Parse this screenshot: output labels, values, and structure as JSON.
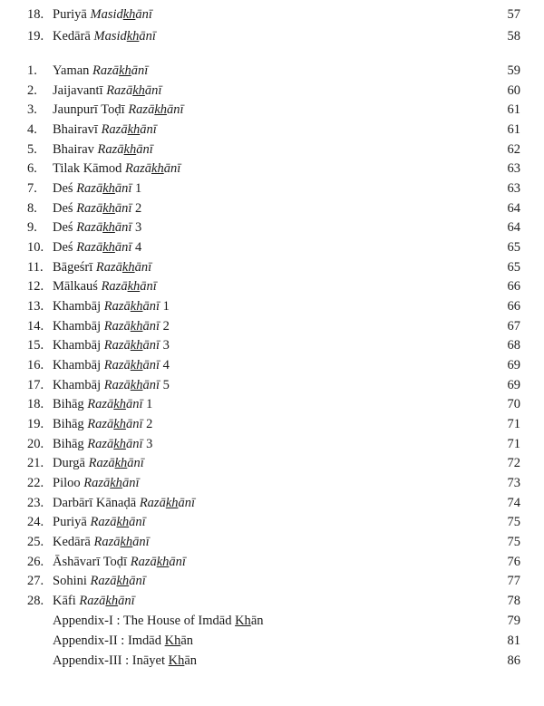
{
  "part1": [
    {
      "num": "18.",
      "raga": "Puriyā ",
      "style": [
        "Masid",
        "kh",
        "ānī"
      ],
      "suffix": "",
      "page": "57"
    },
    {
      "num": "19.",
      "raga": "Kedārā ",
      "style": [
        "Masid",
        "kh",
        "ānī"
      ],
      "suffix": "",
      "page": "58"
    }
  ],
  "part2": [
    {
      "num": "1.",
      "raga": "Yaman ",
      "style": [
        "Razā",
        "kh",
        "ānī"
      ],
      "suffix": "",
      "page": "59"
    },
    {
      "num": "2.",
      "raga": "Jaijavantī ",
      "style": [
        "Razā",
        "kh",
        "ānī"
      ],
      "suffix": "",
      "page": "60"
    },
    {
      "num": "3.",
      "raga": "Jaunpurī Toḍī ",
      "style": [
        "Razā",
        "kh",
        "ānī"
      ],
      "suffix": "",
      "page": "61"
    },
    {
      "num": "4.",
      "raga": "Bhairavī ",
      "style": [
        "Razā",
        "kh",
        "ānī"
      ],
      "suffix": "",
      "page": "61"
    },
    {
      "num": "5.",
      "raga": "Bhairav ",
      "style": [
        "Razā",
        "kh",
        "ānī"
      ],
      "suffix": "",
      "page": "62"
    },
    {
      "num": "6.",
      "raga": "Tilak Kāmod ",
      "style": [
        "Razā",
        "kh",
        "ānī"
      ],
      "suffix": "",
      "page": "63"
    },
    {
      "num": "7.",
      "raga": "Deś ",
      "style": [
        "Razā",
        "kh",
        "ānī"
      ],
      "suffix": " 1",
      "page": "63"
    },
    {
      "num": "8.",
      "raga": "Deś ",
      "style": [
        "Razā",
        "kh",
        "ānī"
      ],
      "suffix": " 2",
      "page": "64"
    },
    {
      "num": "9.",
      "raga": "Deś ",
      "style": [
        "Razā",
        "kh",
        "ānī"
      ],
      "suffix": " 3",
      "page": "64"
    },
    {
      "num": "10.",
      "raga": "Deś ",
      "style": [
        "Razā",
        "kh",
        "ānī"
      ],
      "suffix": " 4",
      "page": "65"
    },
    {
      "num": "11.",
      "raga": "Bāgeśrī ",
      "style": [
        "Razā",
        "kh",
        "ānī"
      ],
      "suffix": "",
      "page": "65"
    },
    {
      "num": "12.",
      "raga": "Mālkauś ",
      "style": [
        "Razā",
        "kh",
        "ānī"
      ],
      "suffix": "",
      "page": "66"
    },
    {
      "num": "13.",
      "raga": "Khambāj ",
      "style": [
        "Razā",
        "kh",
        "ānī"
      ],
      "suffix": " 1",
      "page": "66"
    },
    {
      "num": "14.",
      "raga": "Khambāj ",
      "style": [
        "Razā",
        "kh",
        "ānī"
      ],
      "suffix": " 2",
      "page": "67"
    },
    {
      "num": "15.",
      "raga": "Khambāj ",
      "style": [
        "Razā",
        "kh",
        "ānī"
      ],
      "suffix": " 3",
      "page": "68"
    },
    {
      "num": "16.",
      "raga": "Khambāj ",
      "style": [
        "Razā",
        "kh",
        "ānī"
      ],
      "suffix": " 4",
      "page": "69"
    },
    {
      "num": "17.",
      "raga": "Khambāj ",
      "style": [
        "Razā",
        "kh",
        "ānī"
      ],
      "suffix": " 5",
      "page": "69"
    },
    {
      "num": "18.",
      "raga": "Bihāg ",
      "style": [
        "Razā",
        "kh",
        "ānī"
      ],
      "suffix": " 1",
      "page": "70"
    },
    {
      "num": "19.",
      "raga": "Bihāg ",
      "style": [
        "Razā",
        "kh",
        "ānī"
      ],
      "suffix": " 2",
      "page": "71"
    },
    {
      "num": "20.",
      "raga": "Bihāg ",
      "style": [
        "Razā",
        "kh",
        "ānī"
      ],
      "suffix": " 3",
      "page": "71"
    },
    {
      "num": "21.",
      "raga": "Durgā ",
      "style": [
        "Razā",
        "kh",
        "ānī"
      ],
      "suffix": "",
      "page": "72"
    },
    {
      "num": "22.",
      "raga": "Piloo ",
      "style": [
        "Razā",
        "kh",
        "ānī"
      ],
      "suffix": "",
      "page": "73"
    },
    {
      "num": "23.",
      "raga": "Darbārī Kānaḍā ",
      "style": [
        "Razā",
        "kh",
        "ānī"
      ],
      "suffix": "",
      "page": "74"
    },
    {
      "num": "24.",
      "raga": "Puriyā ",
      "style": [
        "Razā",
        "kh",
        "ānī"
      ],
      "suffix": "",
      "page": "75"
    },
    {
      "num": "25.",
      "raga": "Kedārā ",
      "style": [
        "Razā",
        "kh",
        "ānī"
      ],
      "suffix": "",
      "page": "75"
    },
    {
      "num": "26.",
      "raga": "Āshāvarī Toḍī ",
      "style": [
        "Razā",
        "kh",
        "ānī"
      ],
      "suffix": "",
      "page": "76"
    },
    {
      "num": "27.",
      "raga": "Sohini ",
      "style": [
        "Razā",
        "kh",
        "ānī"
      ],
      "suffix": "",
      "page": "77"
    },
    {
      "num": "28.",
      "raga": "Kāfi ",
      "style": [
        "Razā",
        "kh",
        "ānī"
      ],
      "suffix": "",
      "page": "78"
    }
  ],
  "appendices": [
    {
      "pre": "Appendix-I : The House of  Imdād ",
      "ul": "Kh",
      "post": "ān",
      "page": "79"
    },
    {
      "pre": "Appendix-II : Imdād ",
      "ul": "Kh",
      "post": "ān",
      "page": "81"
    },
    {
      "pre": "Appendix-III : Ināyet ",
      "ul": "Kh",
      "post": "ān",
      "page": "86"
    }
  ]
}
